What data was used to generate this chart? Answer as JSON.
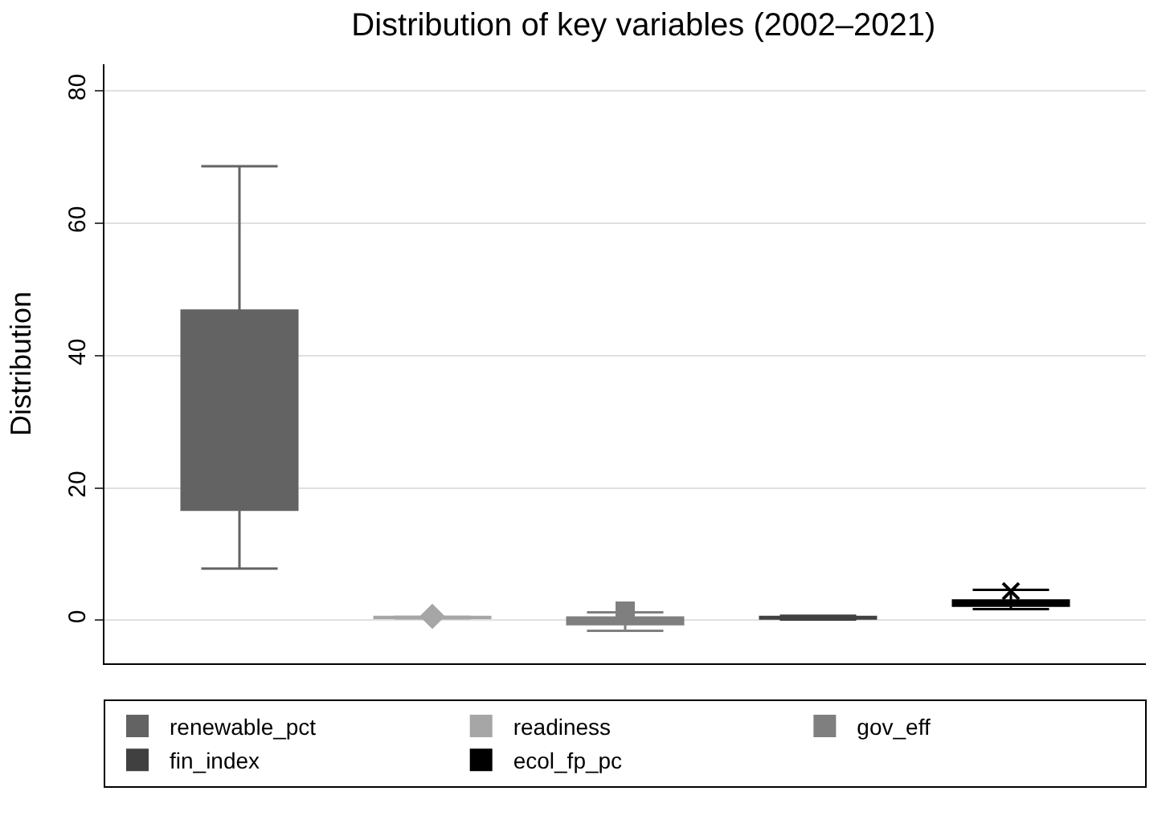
{
  "chart_data": {
    "type": "box",
    "title": "Distribution of key variables (2002–2021)",
    "ylabel": "Distribution",
    "categories": [
      null
    ],
    "series": [
      {
        "name": "renewable_pct",
        "color": "#636363",
        "boxes": [
          {
            "low": 7.8,
            "q1": 16.7,
            "median": 30.8,
            "q3": 46.8,
            "high": 68.6
          }
        ]
      },
      {
        "name": "readiness",
        "color": "#a6a6a6",
        "marker": "diamond",
        "boxes": [
          {
            "low": 0.3,
            "q1": 0.35,
            "median": 0.42,
            "q3": 0.5,
            "high": 0.55,
            "outliers": [
              0.6
            ]
          }
        ]
      },
      {
        "name": "gov_eff",
        "color": "#7f7f7f",
        "marker": "square",
        "boxes": [
          {
            "low": -1.6,
            "q1": -0.6,
            "median": -0.2,
            "q3": 0.4,
            "high": 1.2,
            "outliers": [
              1.4
            ]
          }
        ]
      },
      {
        "name": "fin_index",
        "color": "#404040",
        "boxes": [
          {
            "low": 0.1,
            "q1": 0.25,
            "median": 0.35,
            "q3": 0.5,
            "high": 0.7
          }
        ]
      },
      {
        "name": "ecol_fp_pc",
        "color": "#000000",
        "marker": "cross",
        "boxes": [
          {
            "low": 1.7,
            "q1": 2.2,
            "median": 2.6,
            "q3": 3.0,
            "high": 4.6,
            "outliers": [
              4.4
            ]
          }
        ]
      }
    ],
    "ylim": [
      -6.5,
      84
    ],
    "yticks": [
      0,
      20,
      40,
      60,
      80
    ],
    "grid": "y",
    "legend": "bottom",
    "tick_labels": "y"
  }
}
